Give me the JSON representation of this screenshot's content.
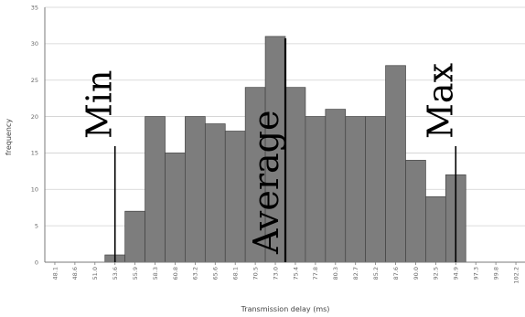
{
  "chart_data": {
    "type": "bar",
    "title": "",
    "xlabel": "Transmission delay (ms)",
    "ylabel": "frequency",
    "ylim": [
      0,
      35
    ],
    "yticks": [
      0,
      5,
      10,
      15,
      20,
      25,
      30,
      35
    ],
    "grid": true,
    "categories": [
      "48.1",
      "48.6",
      "51.0",
      "53.6",
      "55.9",
      "58.3",
      "60.8",
      "63.2",
      "65.6",
      "68.1",
      "70.5",
      "73.0",
      "75.4",
      "77.8",
      "80.3",
      "82.7",
      "85.2",
      "87.6",
      "90.0",
      "92.5",
      "94.9",
      "97.3",
      "99.8",
      "102.2"
    ],
    "values": [
      0,
      0,
      0,
      1,
      7,
      20,
      15,
      20,
      19,
      18,
      24,
      31,
      24,
      20,
      21,
      20,
      20,
      27,
      14,
      9,
      12,
      0,
      0,
      0
    ],
    "bar_color": "#7d7d7d",
    "annotations": [
      {
        "label": "Min",
        "category_index": 3
      },
      {
        "label": "Average",
        "category_index": 11
      },
      {
        "label": "Max",
        "category_index": 20
      }
    ]
  }
}
